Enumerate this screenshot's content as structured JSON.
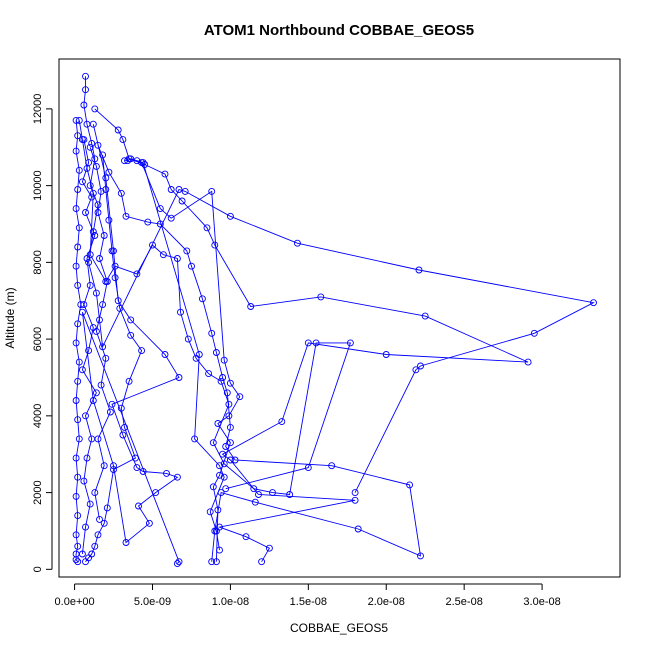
{
  "chart_data": {
    "type": "line",
    "title": "ATOM1 Northbound COBBAE_GEOS5",
    "xlabel": "COBBAE_GEOS5",
    "ylabel": "Altitude (m)",
    "xlim": [
      -1e-09,
      3.5e-08
    ],
    "ylim": [
      -200,
      13300
    ],
    "x_ticks": [
      0,
      5e-09,
      1e-08,
      1.5e-08,
      2e-08,
      2.5e-08,
      3e-08
    ],
    "x_tick_labels": [
      "0.0e+00",
      "5.0e-09",
      "1.0e-08",
      "1.5e-08",
      "2.0e-08",
      "2.5e-08",
      "3.0e-08"
    ],
    "y_ticks": [
      0,
      2000,
      4000,
      6000,
      8000,
      10000,
      12000
    ],
    "y_tick_labels": [
      "0",
      "2000",
      "4000",
      "6000",
      "8000",
      "10000",
      "12000"
    ],
    "color": "#0000ff",
    "marker": "open-circle",
    "series": [
      {
        "x": [
          7e-10,
          7e-10,
          6e-10,
          8e-10,
          1.1e-09,
          1.3e-09,
          1e-09,
          1.5e-09,
          1.2e-09,
          9e-10,
          1.4e-09,
          1.6e-09,
          1.8e-09,
          6.7e-09,
          7.1e-09,
          1e-08,
          1.43e-08,
          2.21e-08,
          3.33e-08,
          2.95e-08,
          2.22e-08,
          2.19e-08,
          1.8e-08
        ],
        "y": [
          12850,
          12500,
          12100,
          11600,
          11100,
          10700,
          10000,
          9500,
          8800,
          8000,
          7200,
          6500,
          5800,
          9900,
          9850,
          9200,
          8500,
          7800,
          6950,
          6150,
          5300,
          5200,
          2000
        ]
      },
      {
        "x": [
          1.3e-09,
          2.8e-09,
          3.1e-09,
          3.5e-09,
          4.5e-09,
          5.8e-09,
          6.2e-09,
          6.9e-09,
          8.5e-09,
          9e-09,
          1.13e-08,
          1.58e-08,
          2.25e-08,
          2.91e-08,
          2e-08,
          1.5e-08,
          1.33e-08,
          9.5e-09,
          1e-08,
          1.18e-08,
          1.8e-08,
          9.3e-09,
          1.1e-08,
          1.25e-08,
          1.2e-08
        ],
        "y": [
          12000,
          11450,
          11200,
          10700,
          10550,
          10300,
          9900,
          9600,
          8900,
          8450,
          6850,
          7100,
          6600,
          5400,
          5600,
          5900,
          3850,
          3000,
          2850,
          1950,
          1800,
          1100,
          850,
          550,
          200
        ]
      },
      {
        "x": [
          1.5e-09,
          2.2e-09,
          3e-09,
          3.3e-09,
          4.7e-09,
          5.5e-09,
          7.2e-09,
          7.5e-09,
          8.2e-09,
          8.8e-09,
          9.1e-09,
          9.5e-09,
          9.8e-09,
          1e-08,
          9.7e-09,
          1.03e-08,
          1.65e-08,
          2.15e-08,
          2.22e-08,
          1.82e-08,
          1.16e-08,
          9.4e-09,
          9e-09,
          8.8e-09
        ],
        "y": [
          11050,
          10350,
          9800,
          9200,
          9050,
          9000,
          8300,
          7900,
          7050,
          6150,
          5650,
          5000,
          4600,
          3700,
          3200,
          2850,
          2700,
          2200,
          350,
          1050,
          1750,
          2000,
          1000,
          200
        ]
      },
      {
        "x": [
          3e-10,
          5e-10,
          8e-10,
          1.2e-09,
          1e-09,
          2e-09,
          2.6e-09,
          4e-09,
          5e-09,
          5.7e-09,
          6.6e-09,
          6.8e-09,
          7.3e-09,
          7.8e-09,
          8.6e-09,
          9.4e-09,
          9.9e-09,
          8.9e-09,
          9.6e-09,
          1.15e-08,
          1.27e-08,
          1.38e-08,
          1.55e-08,
          1.77e-08,
          1.5e-08,
          9.7e-09
        ],
        "y": [
          11700,
          11200,
          10450,
          9800,
          8200,
          7500,
          7900,
          7700,
          8450,
          8200,
          8100,
          6700,
          6000,
          5500,
          5100,
          4900,
          4300,
          3300,
          2750,
          2100,
          2000,
          1950,
          5900,
          5900,
          2650,
          2100
        ]
      },
      {
        "x": [
          1.2e-09,
          2e-09,
          2.5e-09,
          2.8e-09,
          3.6e-09,
          5.8e-09,
          6.7e-09,
          2.4e-09,
          3.1e-09,
          4e-09,
          4.4e-09,
          5.9e-09,
          6.6e-09,
          5.2e-09,
          4.1e-09,
          4.8e-09,
          3.3e-09,
          2.5e-09,
          1.2e-09,
          5e-10,
          6.7e-09,
          6.6e-09
        ],
        "y": [
          11600,
          10200,
          8300,
          7000,
          6500,
          5600,
          5000,
          4300,
          3500,
          2650,
          2550,
          2500,
          2400,
          2000,
          1650,
          1200,
          700,
          2700,
          4400,
          6700,
          200,
          150
        ]
      },
      {
        "x": [
          1.8e-09,
          2e-09,
          2.2e-09,
          2.4e-09,
          2.6e-09,
          2.9e-09,
          3.6e-09,
          4.3e-09,
          3.5e-09,
          3e-09,
          3.2e-09,
          3.9e-09,
          2.5e-09,
          2.1e-09,
          1.9e-09,
          1.5e-09,
          1.3e-09,
          1.1e-09,
          9e-10,
          7e-10
        ],
        "y": [
          10800,
          9900,
          9100,
          8300,
          7600,
          6800,
          6100,
          5700,
          4900,
          4200,
          3700,
          2900,
          2600,
          1600,
          1200,
          900,
          600,
          400,
          300,
          200
        ]
      },
      {
        "x": [
          1e-10,
          2e-10,
          1e-10,
          3e-10,
          2e-10,
          1e-10,
          3e-10,
          2e-10,
          1e-10,
          2e-10,
          4e-10,
          2e-10,
          1e-10,
          3e-10,
          2e-10,
          1e-10,
          2e-10,
          3e-10,
          1e-10,
          2e-10,
          1e-10,
          2e-10,
          1e-10,
          2e-10,
          1e-10,
          1e-10,
          2e-10
        ],
        "y": [
          11700,
          11300,
          10900,
          10400,
          9900,
          9400,
          8900,
          8400,
          7900,
          7400,
          6900,
          6400,
          5900,
          5400,
          4900,
          4400,
          3900,
          3400,
          2900,
          2400,
          1900,
          1400,
          900,
          600,
          400,
          250,
          200
        ]
      },
      {
        "x": [
          6e-10,
          9e-10,
          5e-10,
          1.1e-09,
          7e-10,
          1.3e-09,
          8e-10,
          1e-09,
          6e-10,
          1.2e-09,
          9e-10,
          5e-10,
          1.4e-09,
          7e-10,
          1.1e-09,
          8e-10,
          6e-10,
          1e-09,
          7e-10,
          5e-10
        ],
        "y": [
          11200,
          10600,
          10100,
          9700,
          9300,
          8700,
          8100,
          7400,
          6900,
          6300,
          5700,
          5200,
          4600,
          4000,
          3400,
          2900,
          2300,
          1700,
          1100,
          400
        ]
      },
      {
        "x": [
          1e-09,
          1.4e-09,
          1.7e-09,
          1.5e-09,
          1.9e-09,
          1.6e-09,
          2.1e-09,
          1.8e-09,
          1.4e-09,
          2e-09,
          1.7e-09,
          2.3e-09,
          1.5e-09,
          1.9e-09,
          1.3e-09,
          1.6e-09
        ],
        "y": [
          11000,
          10500,
          9850,
          9300,
          8700,
          8100,
          7500,
          6900,
          6200,
          5500,
          4800,
          4100,
          3400,
          2700,
          2000,
          1300
        ]
      },
      {
        "x": [
          4e-09,
          4.3e-09,
          5.5e-09,
          6.2e-09,
          8.8e-09,
          9.6e-09,
          1e-08,
          1.06e-08,
          9.9e-09,
          9.2e-09,
          1e-08,
          9.3e-09,
          8.9e-09,
          9.2e-09,
          9.1e-09
        ],
        "y": [
          10650,
          10600,
          9400,
          9150,
          9850,
          5450,
          4850,
          4500,
          4000,
          3800,
          3300,
          2450,
          2150,
          1550,
          200
        ]
      },
      {
        "x": [
          3.2e-09,
          3.4e-09,
          3.6e-09,
          4.4e-09,
          8e-09,
          7.7e-09,
          9.3e-09,
          9.6e-09,
          8.7e-09,
          9.1e-09,
          9.3e-09
        ],
        "y": [
          10650,
          10650,
          10700,
          10600,
          5600,
          3400,
          2700,
          2400,
          1500,
          1000,
          500
        ]
      }
    ]
  }
}
